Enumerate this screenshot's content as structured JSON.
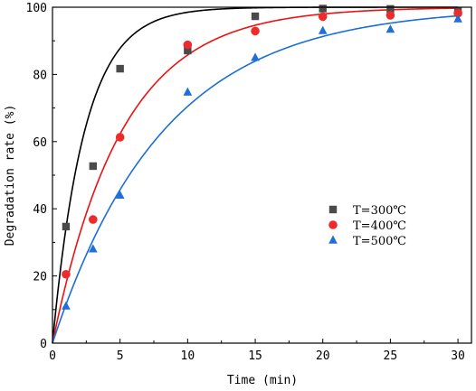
{
  "chart_data": {
    "type": "scatter",
    "xlabel": "Time (min)",
    "ylabel": "Degradation rate (%)",
    "xlim": [
      0,
      31
    ],
    "ylim": [
      0,
      100
    ],
    "xticks": [
      0,
      5,
      10,
      15,
      20,
      25,
      30
    ],
    "yticks": [
      0,
      20,
      40,
      60,
      80,
      100
    ],
    "grid": false,
    "legend": "center-right",
    "series": [
      {
        "name": "T=300℃",
        "marker": "square",
        "color": "#4a4a4a",
        "fit_color": "#000000",
        "x": [
          1,
          3,
          5,
          10,
          15,
          20,
          25,
          30
        ],
        "y": [
          34.7,
          52.7,
          81.7,
          87.1,
          97.3,
          99.6,
          99.5,
          98.8
        ],
        "fit_k": 0.42
      },
      {
        "name": "T=400℃",
        "marker": "circle",
        "color": "#ee2a2a",
        "fit_color": "#ee1111",
        "x": [
          1,
          3,
          5,
          10,
          15,
          20,
          25,
          30
        ],
        "y": [
          20.5,
          36.8,
          61.3,
          88.8,
          92.9,
          97.2,
          97.6,
          98.2
        ],
        "fit_k": 0.195
      },
      {
        "name": "T=500℃",
        "marker": "triangle",
        "color": "#1f6fd8",
        "fit_color": "#1a6fd6",
        "x": [
          1,
          3,
          5,
          10,
          15,
          20,
          25,
          30
        ],
        "y": [
          11,
          28,
          44,
          74.7,
          85,
          93,
          93.4,
          96.5
        ],
        "fit_k": 0.122
      }
    ]
  }
}
